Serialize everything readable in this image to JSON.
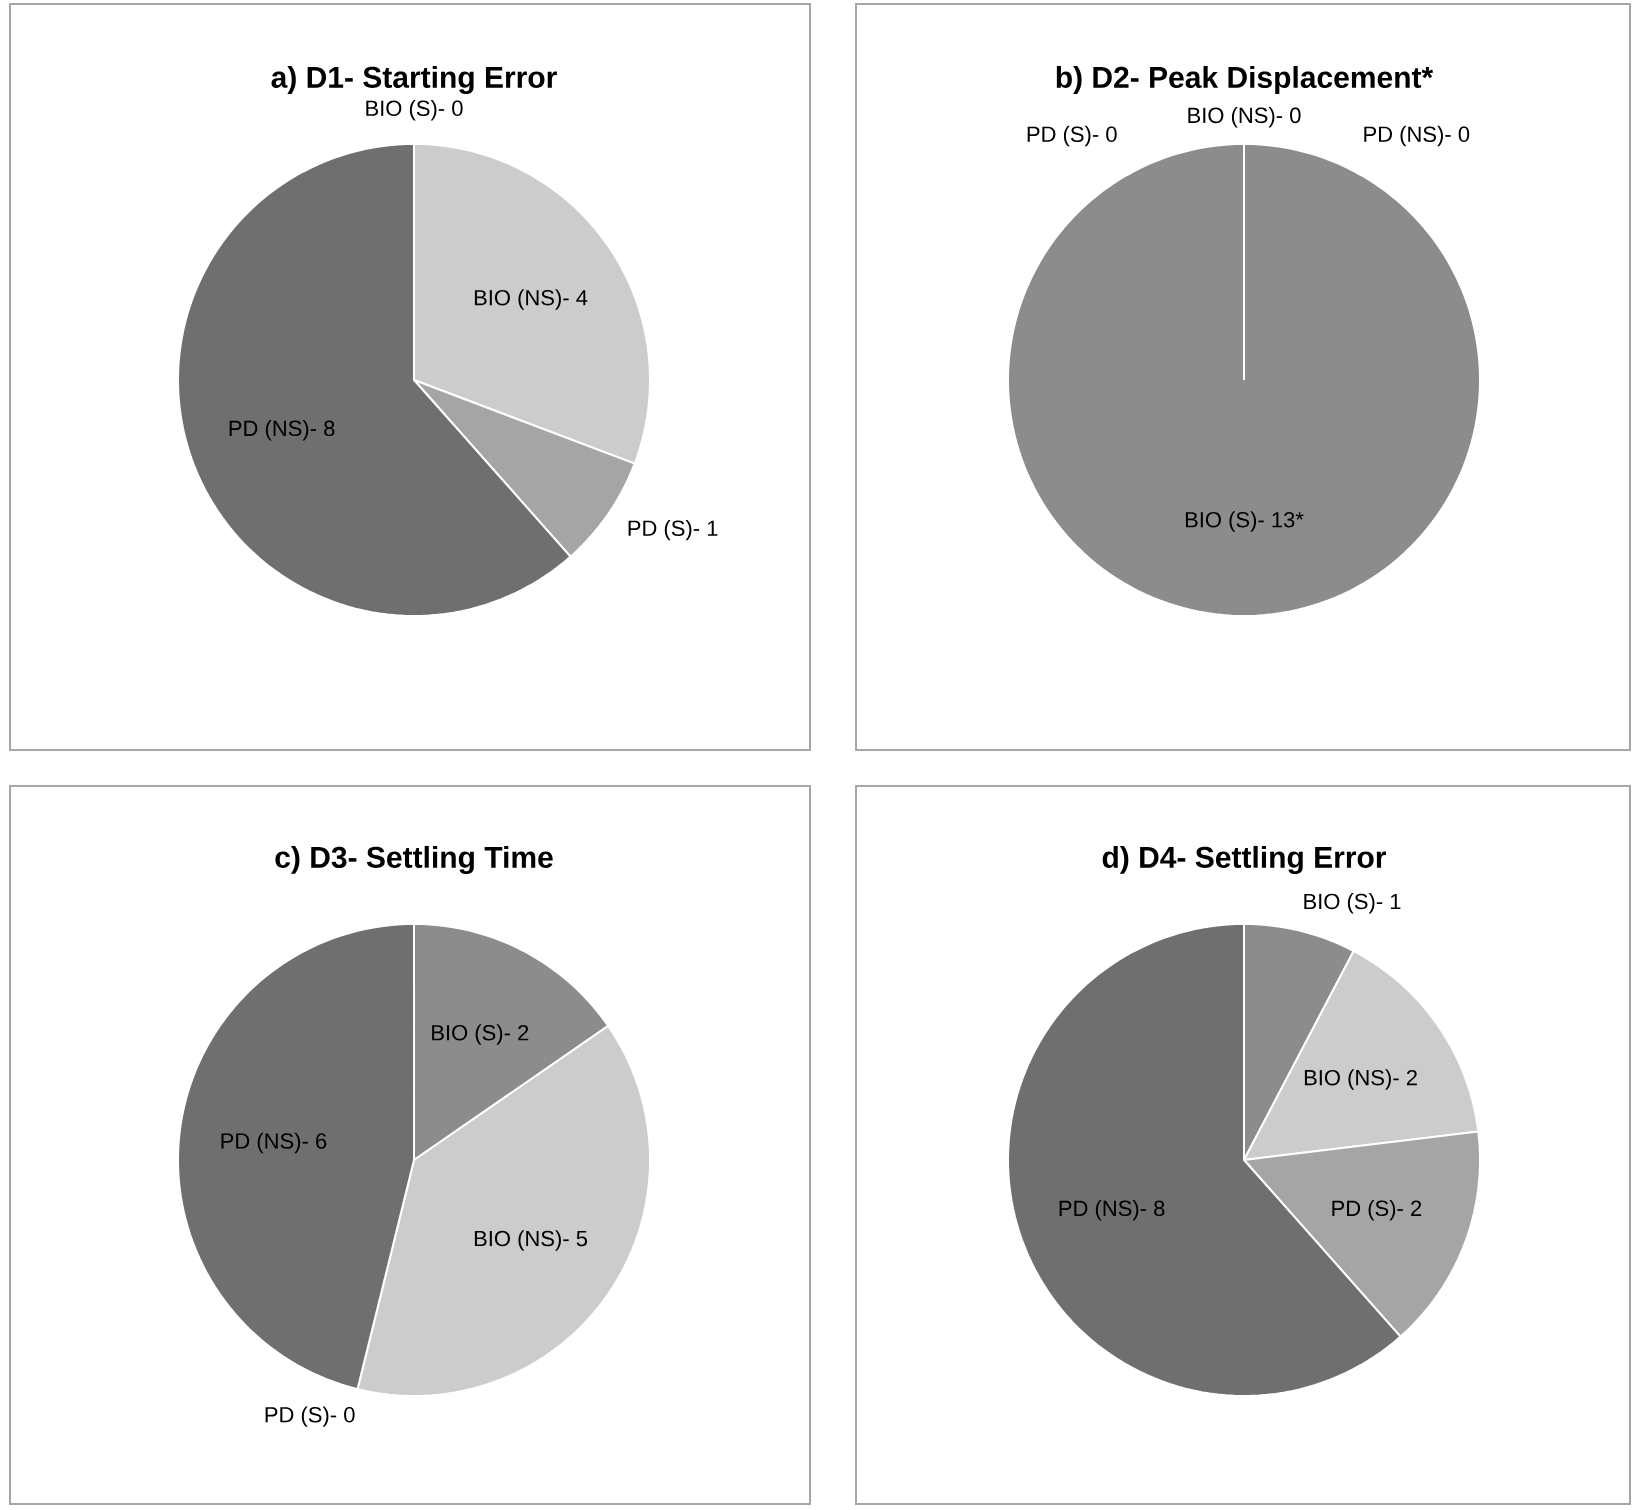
{
  "chart_data": [
    {
      "type": "pie",
      "title": "a) D1- Starting Error",
      "categories": [
        "BIO (S)-",
        "BIO (NS)-",
        "PD (S)-",
        "PD (NS)-"
      ],
      "values": [
        0,
        4,
        1,
        8
      ],
      "value_labels": [
        "0",
        "4",
        "1",
        "8"
      ],
      "colors": [
        "#8c8c8c",
        "#cccccc",
        "#a5a5a5",
        "#6f6f6f"
      ]
    },
    {
      "type": "pie",
      "title": "b) D2- Peak Displacement*",
      "categories": [
        "BIO (S)-",
        "PD (S)-",
        "BIO (NS)-",
        "PD (NS)-"
      ],
      "values": [
        13,
        0,
        0,
        0
      ],
      "value_labels": [
        "13*",
        "0",
        "0",
        "0"
      ],
      "colors": [
        "#8c8c8c",
        "#a5a5a5",
        "#cccccc",
        "#6f6f6f"
      ]
    },
    {
      "type": "pie",
      "title": "c) D3- Settling Time",
      "categories": [
        "BIO (S)-",
        "BIO (NS)-",
        "PD (S)-",
        "PD (NS)-"
      ],
      "values": [
        2,
        5,
        0,
        6
      ],
      "value_labels": [
        "2",
        "5",
        "0",
        "6"
      ],
      "colors": [
        "#8c8c8c",
        "#cccccc",
        "#a5a5a5",
        "#6f6f6f"
      ]
    },
    {
      "type": "pie",
      "title": "d) D4- Settling Error",
      "categories": [
        "BIO (S)-",
        "BIO (NS)-",
        "PD (S)-",
        "PD (NS)-"
      ],
      "values": [
        1,
        2,
        2,
        8
      ],
      "value_labels": [
        "1",
        "2",
        "2",
        "8"
      ],
      "colors": [
        "#8c8c8c",
        "#cccccc",
        "#a5a5a5",
        "#6f6f6f"
      ]
    }
  ]
}
